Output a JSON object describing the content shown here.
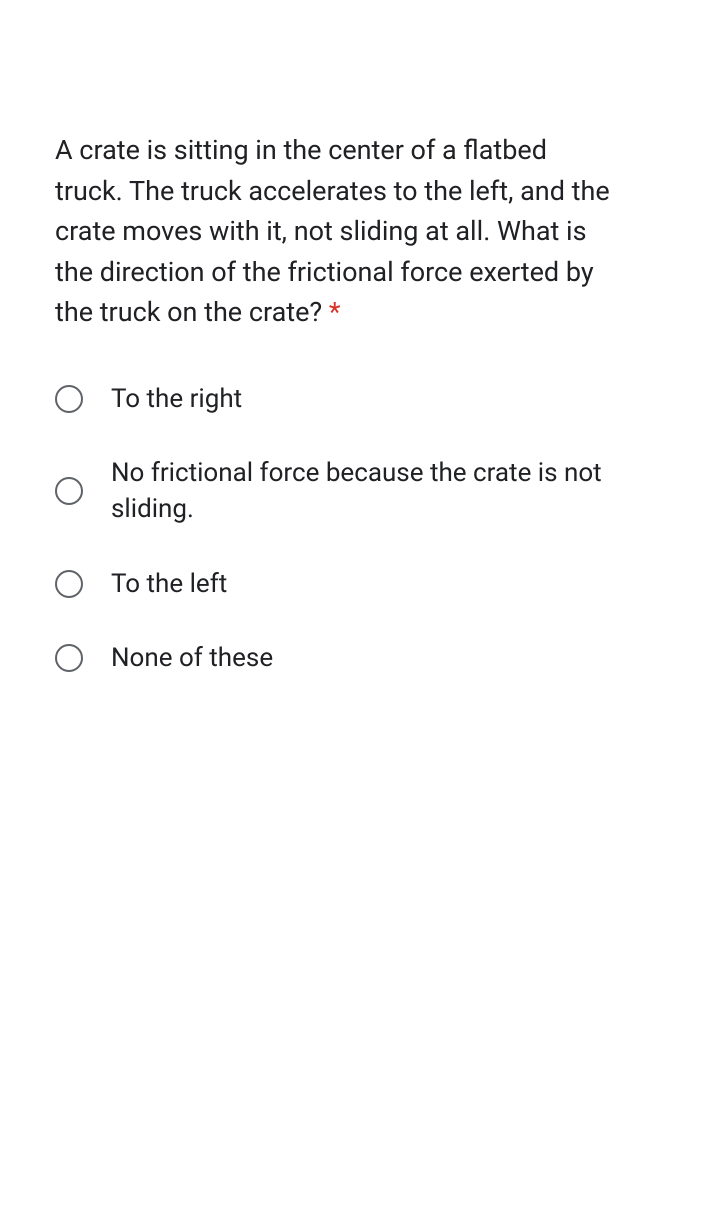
{
  "question": {
    "text": "A crate is sitting in the center of a flatbed truck. The truck accelerates to the left, and the crate moves with it, not sliding at all. What is the direction of the frictional force exerted by the truck on the crate? ",
    "required_marker": "*"
  },
  "options": [
    {
      "label": "To the right"
    },
    {
      "label": "No frictional force because the crate is not sliding."
    },
    {
      "label": "To the left"
    },
    {
      "label": "None of these"
    }
  ],
  "colors": {
    "text": "#202124",
    "required": "#d93025",
    "radio_border": "#5f6368",
    "background": "#ffffff"
  }
}
